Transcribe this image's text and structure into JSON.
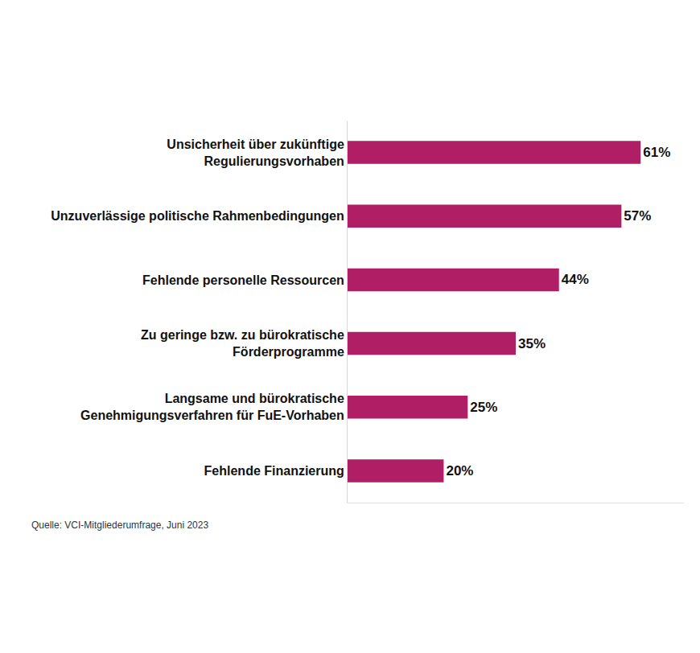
{
  "chart_data": {
    "type": "bar",
    "orientation": "horizontal",
    "categories": [
      "Unsicherheit über zukünftige\nRegulierungsvorhaben",
      "Unzuverlässige politische Rahmenbedingungen",
      "Fehlende personelle Ressourcen",
      "Zu geringe bzw. zu bürokratische\nFörderprogramme",
      "Langsame und bürokratische\nGenehmigungsverfahren für FuE-Vorhaben",
      "Fehlende Finanzierung"
    ],
    "values": [
      61,
      57,
      44,
      35,
      25,
      20
    ],
    "value_labels": [
      "61%",
      "57%",
      "44%",
      "35%",
      "25%",
      "20%"
    ],
    "data_labels": true,
    "color": "#b01f65",
    "xlim": [
      0,
      70
    ],
    "xticks": [],
    "tick_labels": "y",
    "grid": false,
    "source": "Quelle: VCI-Mitgliederumfrage, Juni 2023"
  }
}
